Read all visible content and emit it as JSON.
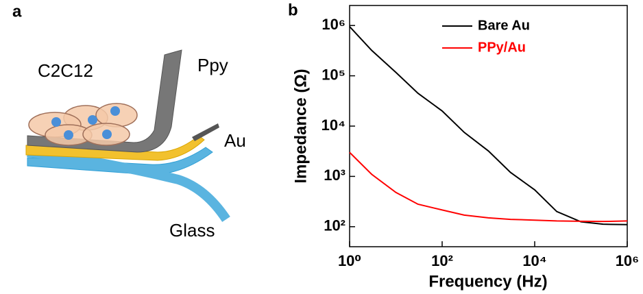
{
  "panel_a": {
    "label": "a",
    "labels": [
      "C2C12",
      "Ppy",
      "Au",
      "Glass"
    ]
  },
  "chart_data": {
    "type": "line",
    "panel_label": "b",
    "xlabel": "Frequency (Hz)",
    "ylabel": "Impedance (Ω)",
    "log_x": true,
    "log_y": true,
    "legend": "top",
    "x": [
      1,
      3,
      10,
      30,
      100,
      300,
      1000,
      3000,
      10000,
      30000,
      100000,
      300000,
      1000000
    ],
    "series": [
      {
        "name": "Bare Au",
        "color": "#000000",
        "values": [
          950000,
          320000,
          117000,
          45000,
          20000,
          7500,
          3200,
          1200,
          540,
          200,
          125,
          112,
          110
        ]
      },
      {
        "name": "PPy/Au",
        "color": "#ff0000",
        "values": [
          3000,
          1100,
          480,
          280,
          215,
          170,
          150,
          140,
          135,
          130,
          128,
          127,
          130
        ]
      }
    ],
    "xlim": [
      1,
      1000000
    ],
    "xticks": [
      {
        "value": 1,
        "label": "10⁰"
      },
      {
        "value": 100,
        "label": "10²"
      },
      {
        "value": 10000,
        "label": "10⁴"
      },
      {
        "value": 1000000,
        "label": "10⁶"
      }
    ],
    "ylim": [
      40,
      2500000
    ],
    "yticks": [
      {
        "value": 100,
        "label": "10²"
      },
      {
        "value": 1000,
        "label": "10³"
      },
      {
        "value": 10000,
        "label": "10⁴"
      },
      {
        "value": 100000,
        "label": "10⁵"
      },
      {
        "value": 1000000,
        "label": "10⁶"
      }
    ]
  }
}
